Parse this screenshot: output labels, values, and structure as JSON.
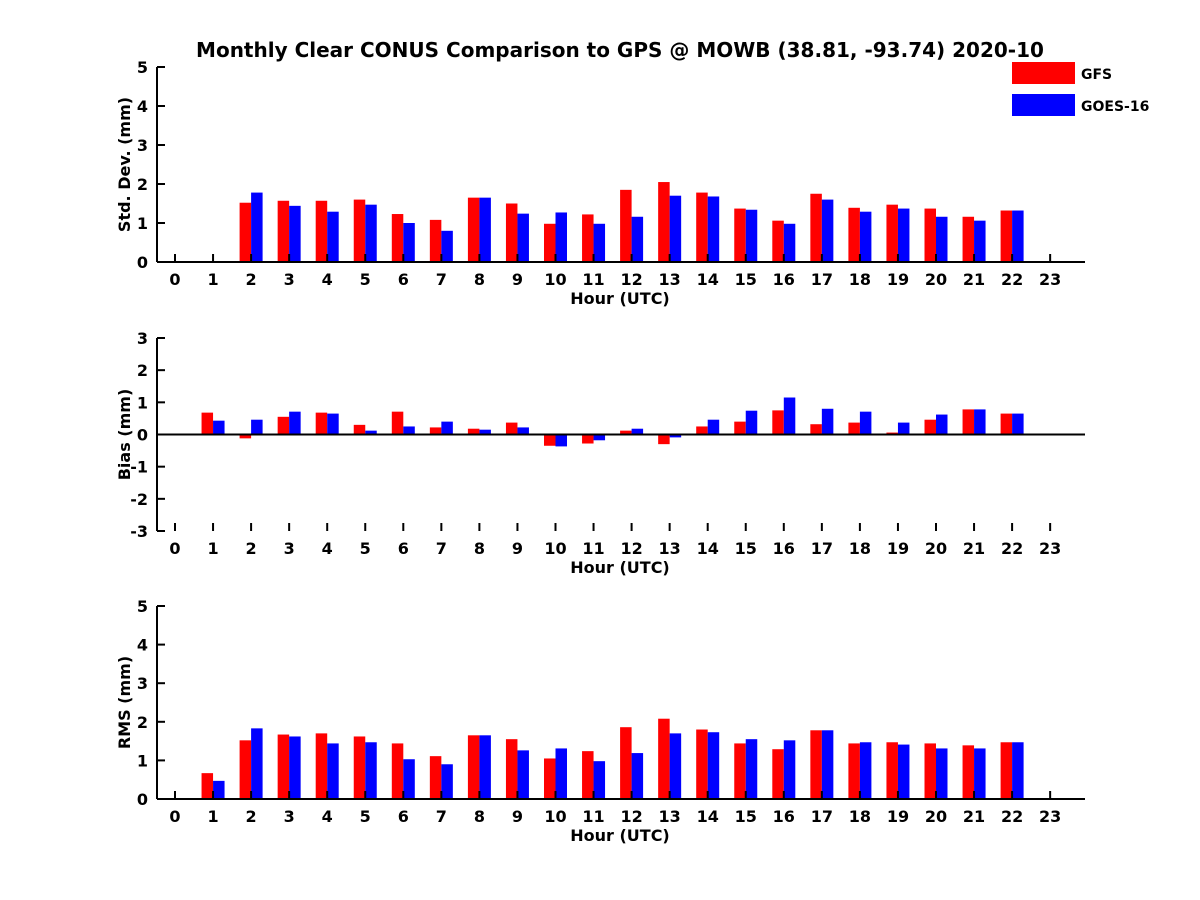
{
  "chart_data": {
    "title": "Monthly Clear CONUS Comparison to GPS @ MOWB (38.81, -93.74) 2020-10",
    "legend": {
      "placement": "top-right",
      "entries": [
        {
          "name": "GFS",
          "color": "#ff0000"
        },
        {
          "name": "GOES-16",
          "color": "#0000ff"
        }
      ]
    },
    "grid": false,
    "panels": [
      {
        "type": "bar",
        "xlabel": "Hour (UTC)",
        "ylabel": "Std. Dev. (mm)",
        "ylim": [
          0,
          5
        ],
        "yticks": [
          0,
          1,
          2,
          3,
          4,
          5
        ],
        "categories": [
          "0",
          "1",
          "2",
          "3",
          "4",
          "5",
          "6",
          "7",
          "8",
          "9",
          "10",
          "11",
          "12",
          "13",
          "14",
          "15",
          "16",
          "17",
          "18",
          "19",
          "20",
          "21",
          "22",
          "23"
        ],
        "series": [
          {
            "name": "GFS",
            "color": "#ff0000",
            "values": [
              null,
              null,
              1.52,
              1.57,
              1.57,
              1.6,
              1.23,
              1.08,
              1.65,
              1.5,
              0.98,
              1.22,
              1.85,
              2.05,
              1.78,
              1.37,
              1.06,
              1.75,
              1.39,
              1.47,
              1.37,
              1.16,
              1.32,
              null
            ]
          },
          {
            "name": "GOES-16",
            "color": "#0000ff",
            "values": [
              null,
              null,
              1.78,
              1.44,
              1.29,
              1.47,
              1.0,
              0.8,
              1.65,
              1.24,
              1.27,
              0.98,
              1.16,
              1.7,
              1.68,
              1.34,
              0.98,
              1.6,
              1.29,
              1.37,
              1.16,
              1.06,
              1.32,
              null
            ]
          }
        ]
      },
      {
        "type": "bar",
        "xlabel": "Hour (UTC)",
        "ylabel": "Bias (mm)",
        "ylim": [
          -3,
          3
        ],
        "yticks": [
          -3,
          -2,
          -1,
          0,
          1,
          2,
          3
        ],
        "categories": [
          "0",
          "1",
          "2",
          "3",
          "4",
          "5",
          "6",
          "7",
          "8",
          "9",
          "10",
          "11",
          "12",
          "13",
          "14",
          "15",
          "16",
          "17",
          "18",
          "19",
          "20",
          "21",
          "22",
          "23"
        ],
        "series": [
          {
            "name": "GFS",
            "color": "#ff0000",
            "values": [
              null,
              0.68,
              -0.12,
              0.55,
              0.68,
              0.3,
              0.71,
              0.22,
              0.18,
              0.37,
              -0.35,
              -0.28,
              0.12,
              -0.3,
              0.25,
              0.4,
              0.75,
              0.32,
              0.37,
              0.06,
              0.46,
              0.78,
              0.65,
              null
            ]
          },
          {
            "name": "GOES-16",
            "color": "#0000ff",
            "values": [
              null,
              0.43,
              0.46,
              0.71,
              0.65,
              0.12,
              0.25,
              0.4,
              0.15,
              0.22,
              -0.37,
              -0.18,
              0.18,
              -0.09,
              0.46,
              0.74,
              1.15,
              0.8,
              0.71,
              0.37,
              0.62,
              0.78,
              0.65,
              null
            ]
          }
        ]
      },
      {
        "type": "bar",
        "xlabel": "Hour (UTC)",
        "ylabel": "RMS (mm)",
        "ylim": [
          0,
          5
        ],
        "yticks": [
          0,
          1,
          2,
          3,
          4,
          5
        ],
        "categories": [
          "0",
          "1",
          "2",
          "3",
          "4",
          "5",
          "6",
          "7",
          "8",
          "9",
          "10",
          "11",
          "12",
          "13",
          "14",
          "15",
          "16",
          "17",
          "18",
          "19",
          "20",
          "21",
          "22",
          "23"
        ],
        "series": [
          {
            "name": "GFS",
            "color": "#ff0000",
            "values": [
              null,
              0.67,
              1.52,
              1.67,
              1.7,
              1.62,
              1.44,
              1.11,
              1.65,
              1.55,
              1.05,
              1.24,
              1.86,
              2.08,
              1.8,
              1.44,
              1.29,
              1.78,
              1.44,
              1.47,
              1.44,
              1.39,
              1.47,
              null
            ]
          },
          {
            "name": "GOES-16",
            "color": "#0000ff",
            "values": [
              null,
              0.47,
              1.83,
              1.62,
              1.44,
              1.47,
              1.03,
              0.9,
              1.65,
              1.26,
              1.31,
              0.98,
              1.19,
              1.7,
              1.73,
              1.55,
              1.52,
              1.78,
              1.47,
              1.41,
              1.31,
              1.31,
              1.47,
              null
            ]
          }
        ]
      }
    ]
  }
}
